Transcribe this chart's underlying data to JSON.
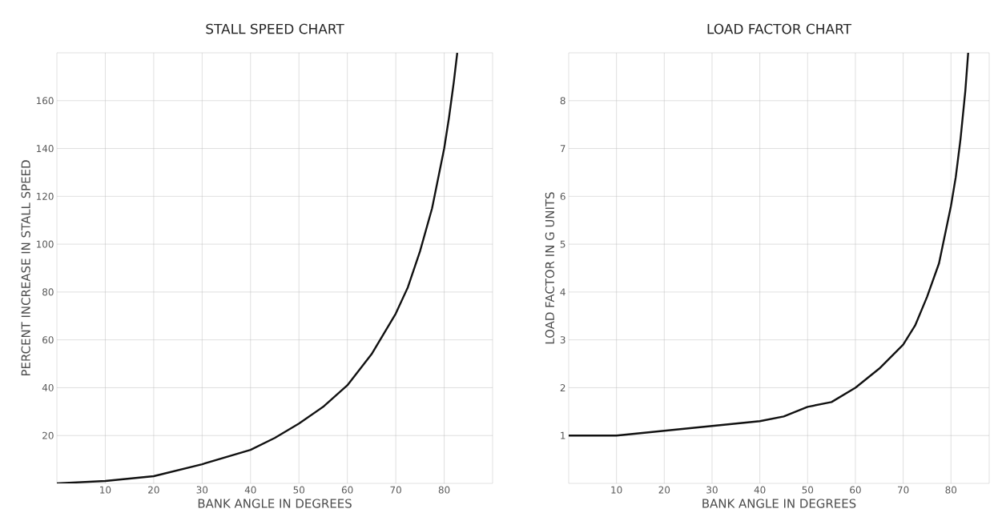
{
  "chart_data": [
    {
      "type": "line",
      "title": "STALL SPEED CHART",
      "xlabel": "BANK ANGLE IN DEGREES",
      "ylabel": "PERCENT INCREASE IN STALL SPEED",
      "x": [
        0,
        10,
        20,
        30,
        40,
        45,
        50,
        55,
        60,
        65,
        70,
        72.5,
        75,
        77.5,
        80,
        81,
        82,
        82.7
      ],
      "values": [
        0,
        1,
        3,
        8,
        14,
        19,
        25,
        32,
        41,
        54,
        71,
        82,
        97,
        115,
        140,
        153,
        168,
        180
      ],
      "color": "#111111",
      "marker": "none",
      "grid": true,
      "xlim": [
        0,
        90
      ],
      "xticks": [
        10,
        20,
        30,
        40,
        50,
        60,
        70,
        80
      ],
      "ylim": [
        0,
        180
      ],
      "yticks": [
        20,
        40,
        60,
        80,
        100,
        120,
        140,
        160
      ]
    },
    {
      "type": "line",
      "title": "LOAD FACTOR CHART",
      "xlabel": "BANK ANGLE IN DEGREES",
      "ylabel": "LOAD FACTOR IN G UNITS",
      "x": [
        0,
        10,
        20,
        30,
        40,
        45,
        50,
        55,
        60,
        65,
        70,
        72.5,
        75,
        77.5,
        80,
        81,
        82,
        83,
        83.6
      ],
      "values": [
        1.0,
        1.0,
        1.1,
        1.2,
        1.3,
        1.4,
        1.6,
        1.7,
        2.0,
        2.4,
        2.9,
        3.3,
        3.9,
        4.6,
        5.8,
        6.4,
        7.2,
        8.2,
        9.0
      ],
      "color": "#111111",
      "marker": "none",
      "grid": true,
      "xlim": [
        0,
        88
      ],
      "xticks": [
        10,
        20,
        30,
        40,
        50,
        60,
        70,
        80
      ],
      "ylim": [
        0,
        9
      ],
      "yticks": [
        1,
        2,
        3,
        4,
        5,
        6,
        7,
        8
      ]
    }
  ]
}
